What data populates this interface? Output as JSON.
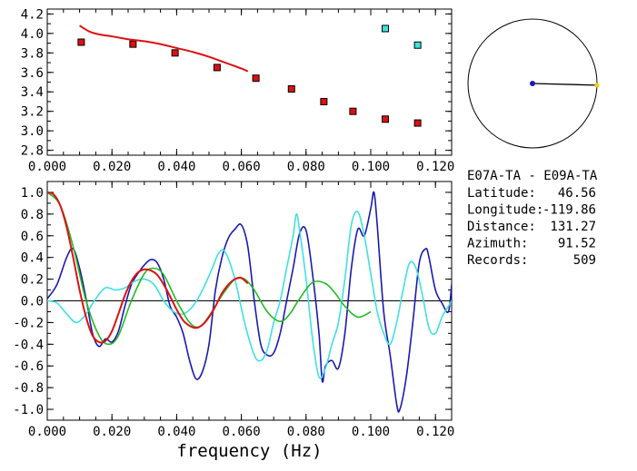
{
  "station_pair": {
    "title": "E07A-TA - E09A-TA",
    "rows": [
      {
        "label": "Latitude:",
        "value": "46.56"
      },
      {
        "label": "Longitude:",
        "value": "-119.86"
      },
      {
        "label": "Distance:",
        "value": "131.27"
      },
      {
        "label": "Azimuth:",
        "value": "91.52"
      },
      {
        "label": "Records:",
        "value": "509"
      }
    ]
  },
  "azimuth_deg": 91.52,
  "colors": {
    "red": "#dd1111",
    "cyan": "#40e0e0",
    "navy": "#1a1ab0",
    "green": "#22bb22",
    "yellow": "#f0d000"
  },
  "chart_data": [
    {
      "type": "scatter",
      "title": "",
      "xlabel": "",
      "ylabel": "",
      "xlim": [
        0.0,
        0.125
      ],
      "ylim": [
        2.75,
        4.25
      ],
      "xticks": [
        "0.000",
        "0.020",
        "0.040",
        "0.060",
        "0.080",
        "0.100",
        "0.120"
      ],
      "yticks": [
        "2.8",
        "3.0",
        "3.2",
        "3.4",
        "3.6",
        "3.8",
        "4.0",
        "4.2"
      ],
      "series": [
        {
          "color": "red",
          "style": "square-markers",
          "x": [
            0.0105,
            0.0265,
            0.0395,
            0.0525,
            0.0645,
            0.0755,
            0.0855,
            0.0945,
            0.1045,
            0.1145
          ],
          "y": [
            3.91,
            3.89,
            3.8,
            3.65,
            3.54,
            3.43,
            3.3,
            3.2,
            3.12,
            3.08
          ]
        },
        {
          "color": "cyan",
          "style": "square-markers",
          "x": [
            0.1045,
            0.1145
          ],
          "y": [
            4.05,
            3.88
          ]
        },
        {
          "color": "red",
          "style": "line",
          "x": [
            0.01,
            0.013,
            0.016,
            0.02,
            0.025,
            0.03,
            0.035,
            0.04,
            0.045,
            0.05,
            0.055,
            0.06,
            0.062
          ],
          "y": [
            4.08,
            4.02,
            3.99,
            3.97,
            3.94,
            3.92,
            3.89,
            3.85,
            3.81,
            3.76,
            3.7,
            3.64,
            3.61
          ]
        }
      ]
    },
    {
      "type": "line",
      "title": "",
      "xlabel": "frequency (Hz)",
      "ylabel": "",
      "xlim": [
        0.0,
        0.125
      ],
      "ylim": [
        -1.1,
        1.1
      ],
      "xticks": [
        "0.000",
        "0.020",
        "0.040",
        "0.060",
        "0.080",
        "0.100",
        "0.120"
      ],
      "yticks": [
        "1.0",
        "0.8",
        "0.6",
        "0.4",
        "0.2",
        "0.0",
        "-0.2",
        "-0.4",
        "-0.6",
        "-0.8",
        "-1.0"
      ],
      "zero_line": true,
      "series": [
        {
          "color": "navy",
          "x": [
            0.0,
            0.003,
            0.006,
            0.008,
            0.01,
            0.012,
            0.014,
            0.016,
            0.018,
            0.02,
            0.022,
            0.024,
            0.026,
            0.028,
            0.03,
            0.032,
            0.034,
            0.036,
            0.038,
            0.04,
            0.042,
            0.044,
            0.046,
            0.048,
            0.05,
            0.052,
            0.054,
            0.056,
            0.058,
            0.06,
            0.062,
            0.064,
            0.066,
            0.068,
            0.07,
            0.072,
            0.074,
            0.076,
            0.078,
            0.08,
            0.082,
            0.084,
            0.085,
            0.086,
            0.088,
            0.09,
            0.092,
            0.094,
            0.096,
            0.098,
            0.1,
            0.101,
            0.102,
            0.104,
            0.106,
            0.108,
            0.109,
            0.111,
            0.113,
            0.115,
            0.117,
            0.118,
            0.12,
            0.122,
            0.124,
            0.125
          ],
          "y": [
            0.02,
            0.15,
            0.4,
            0.48,
            0.3,
            0.02,
            -0.3,
            -0.42,
            -0.35,
            -0.38,
            -0.28,
            -0.05,
            0.15,
            0.25,
            0.33,
            0.38,
            0.35,
            0.2,
            -0.05,
            -0.15,
            -0.3,
            -0.55,
            -0.72,
            -0.65,
            -0.4,
            0.1,
            0.4,
            0.58,
            0.66,
            0.7,
            0.5,
            0.0,
            -0.4,
            -0.5,
            -0.48,
            -0.3,
            0.0,
            0.3,
            0.62,
            0.65,
            0.25,
            -0.3,
            -0.74,
            -0.6,
            -0.55,
            -0.62,
            -0.3,
            0.3,
            0.66,
            0.6,
            0.85,
            1.0,
            0.7,
            -0.1,
            -0.5,
            -0.95,
            -1.0,
            -0.7,
            -0.2,
            0.35,
            0.48,
            0.4,
            0.1,
            -0.02,
            -0.1,
            0.15
          ]
        },
        {
          "color": "cyan",
          "x": [
            0.0,
            0.003,
            0.006,
            0.009,
            0.012,
            0.015,
            0.018,
            0.021,
            0.024,
            0.027,
            0.03,
            0.033,
            0.036,
            0.039,
            0.042,
            0.045,
            0.048,
            0.051,
            0.053,
            0.055,
            0.058,
            0.061,
            0.064,
            0.066,
            0.068,
            0.07,
            0.072,
            0.074,
            0.076,
            0.077,
            0.078,
            0.08,
            0.082,
            0.084,
            0.086,
            0.088,
            0.09,
            0.092,
            0.094,
            0.096,
            0.098,
            0.1,
            0.102,
            0.104,
            0.106,
            0.108,
            0.11,
            0.112,
            0.114,
            0.116,
            0.118,
            0.12,
            0.122,
            0.124,
            0.125
          ],
          "y": [
            0.0,
            -0.02,
            -0.12,
            -0.2,
            -0.12,
            0.02,
            0.12,
            0.1,
            0.12,
            0.18,
            0.2,
            0.15,
            0.0,
            -0.1,
            -0.12,
            -0.05,
            0.1,
            0.3,
            0.44,
            0.45,
            0.2,
            -0.2,
            -0.5,
            -0.55,
            -0.45,
            -0.2,
            0.0,
            0.3,
            0.6,
            0.8,
            0.65,
            0.2,
            -0.35,
            -0.7,
            -0.62,
            -0.4,
            -0.2,
            0.2,
            0.7,
            0.82,
            0.6,
            0.25,
            -0.1,
            -0.3,
            -0.4,
            -0.2,
            0.1,
            0.35,
            0.3,
            0.05,
            -0.25,
            -0.3,
            -0.15,
            -0.05,
            0.0
          ]
        },
        {
          "color": "green",
          "x": [
            0.0,
            0.004,
            0.008,
            0.012,
            0.016,
            0.019,
            0.022,
            0.026,
            0.03,
            0.033,
            0.036,
            0.04,
            0.044,
            0.047,
            0.05,
            0.054,
            0.058,
            0.061,
            0.064,
            0.068,
            0.072,
            0.075,
            0.078,
            0.082,
            0.086,
            0.089,
            0.092,
            0.096,
            0.1
          ],
          "y": [
            1.0,
            0.88,
            0.5,
            0.0,
            -0.32,
            -0.4,
            -0.32,
            0.0,
            0.25,
            0.3,
            0.24,
            0.0,
            -0.2,
            -0.24,
            -0.14,
            0.05,
            0.2,
            0.2,
            0.1,
            -0.1,
            -0.19,
            -0.12,
            0.02,
            0.17,
            0.16,
            0.07,
            -0.05,
            -0.15,
            -0.1
          ]
        },
        {
          "color": "red",
          "x": [
            0.0,
            0.002,
            0.004,
            0.006,
            0.008,
            0.01,
            0.012,
            0.014,
            0.016,
            0.018,
            0.02,
            0.022,
            0.024,
            0.026,
            0.028,
            0.03,
            0.032,
            0.034,
            0.036,
            0.038,
            0.04,
            0.042,
            0.044,
            0.046,
            0.048,
            0.05,
            0.052,
            0.054,
            0.056,
            0.058,
            0.06,
            0.062
          ],
          "y": [
            1.0,
            0.98,
            0.88,
            0.68,
            0.4,
            0.1,
            -0.15,
            -0.32,
            -0.38,
            -0.37,
            -0.28,
            -0.12,
            0.05,
            0.18,
            0.26,
            0.29,
            0.28,
            0.24,
            0.15,
            0.04,
            -0.08,
            -0.18,
            -0.23,
            -0.25,
            -0.22,
            -0.15,
            -0.05,
            0.07,
            0.15,
            0.2,
            0.21,
            0.16
          ]
        }
      ]
    }
  ]
}
